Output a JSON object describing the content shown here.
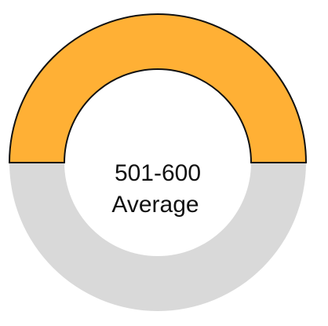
{
  "chart_data": {
    "type": "gauge",
    "value_range": "501-600",
    "category": "Average",
    "filled_fraction": 0.5,
    "colors": {
      "fill": "#ffb035",
      "track": "#d9d9d9",
      "outline": "#111111"
    }
  }
}
